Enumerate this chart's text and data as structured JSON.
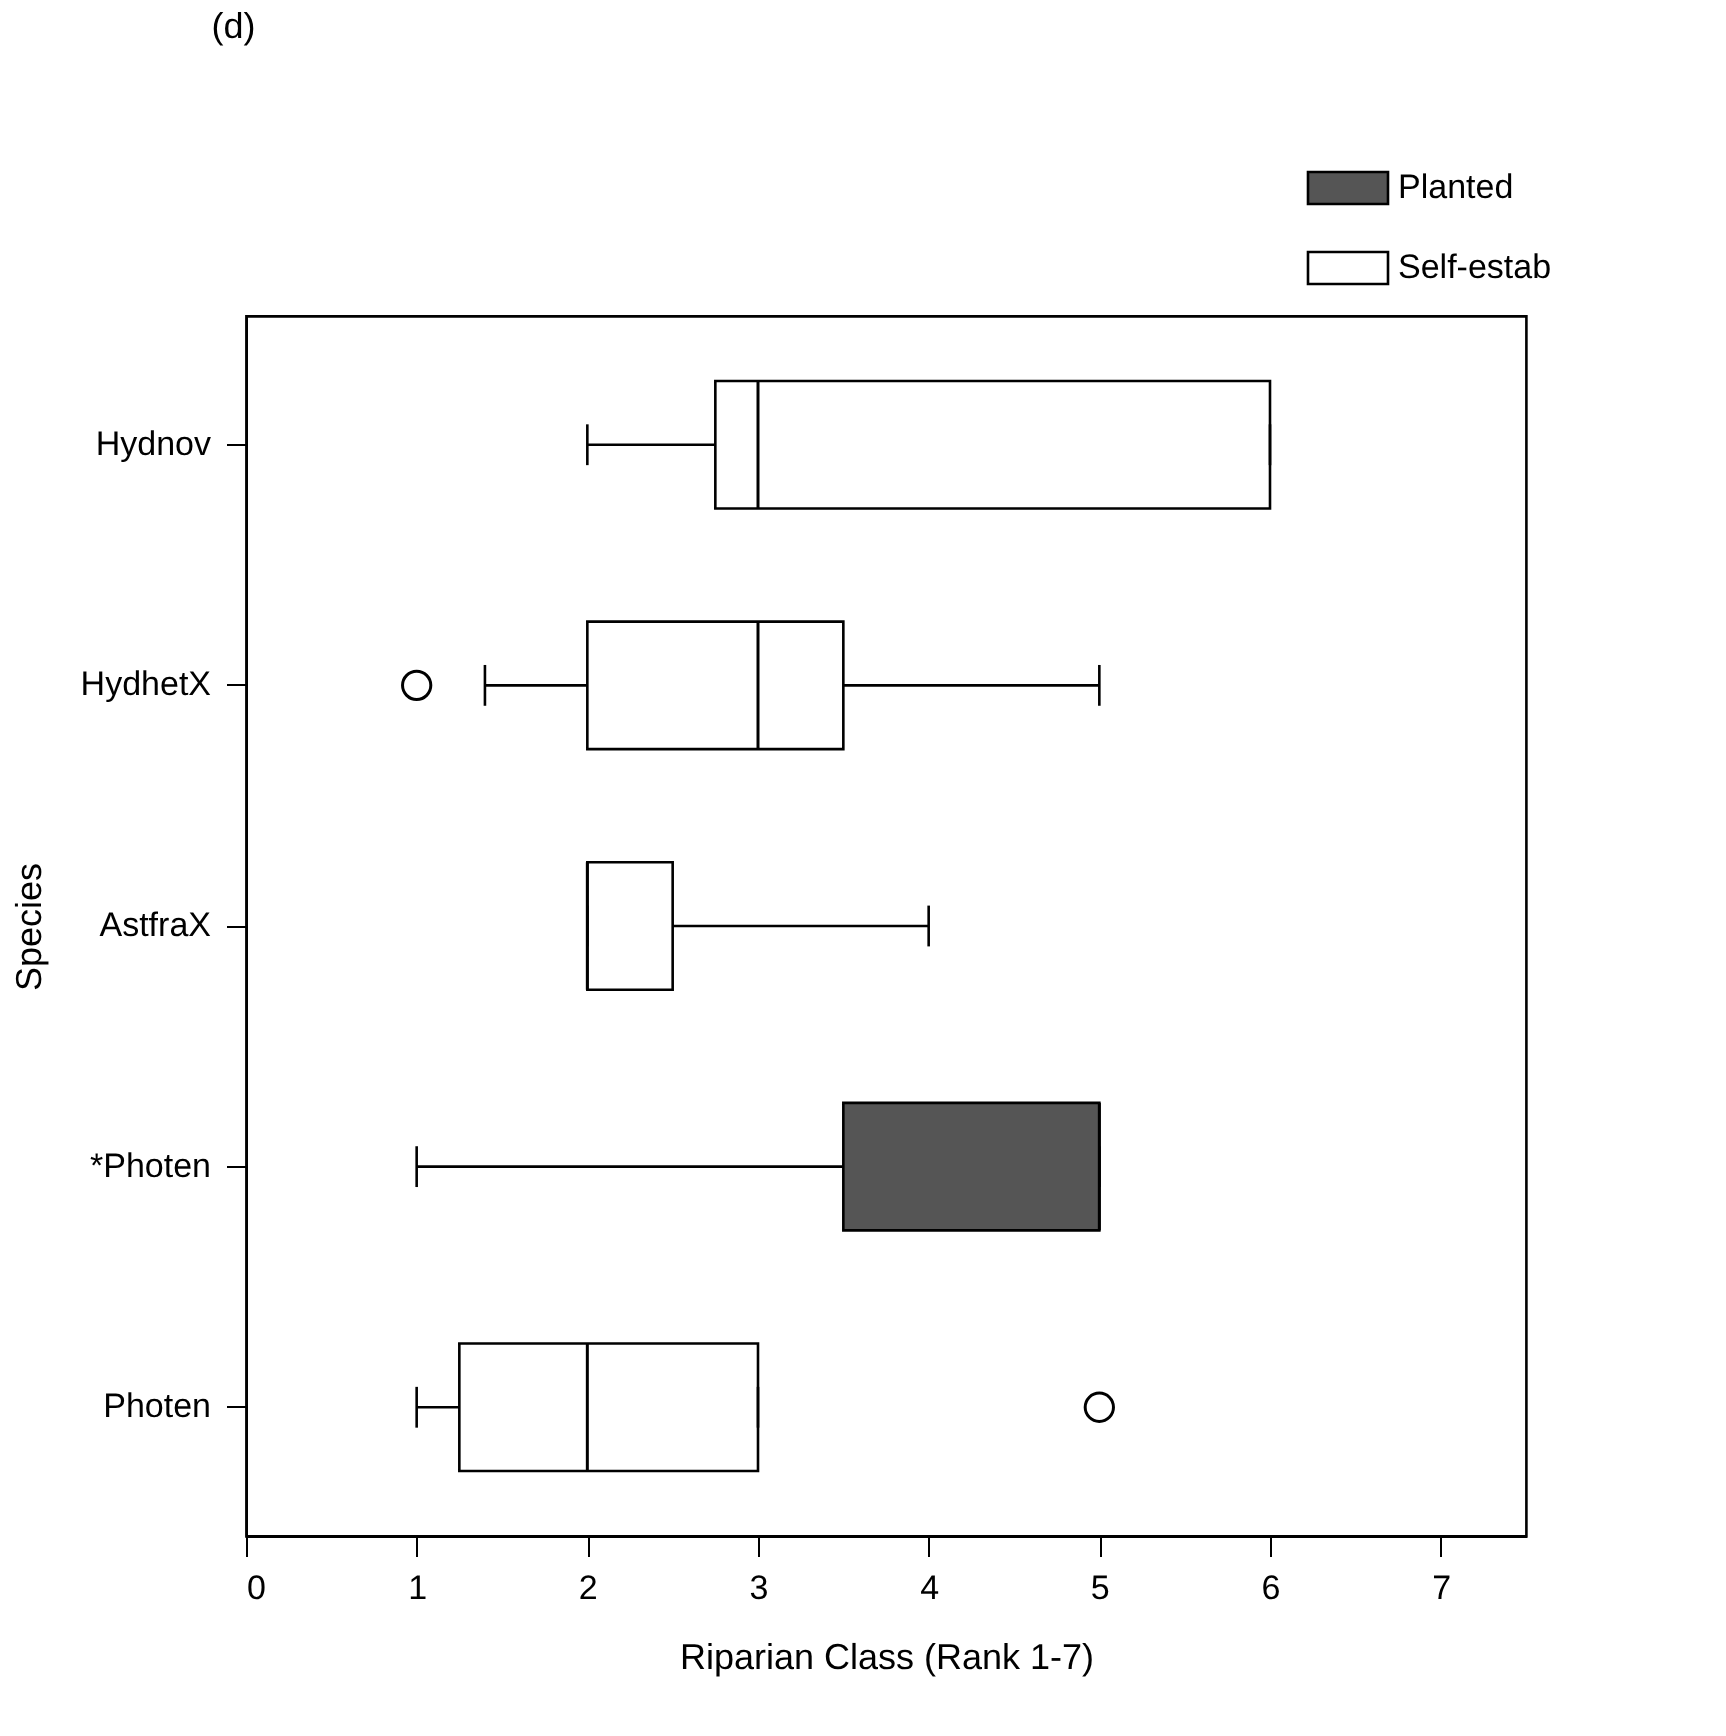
{
  "chart_data": {
    "type": "box",
    "title": "(d)",
    "xlabel": "Riparian Class (Rank 1-7)",
    "ylabel": "Species",
    "orientation": "horizontal",
    "legend": "top right",
    "categories": [
      "Hydnov",
      "HydhetX",
      "AstfraX",
      "*Photen",
      "Photen"
    ],
    "xlim": [
      0,
      7.5
    ],
    "xticks": [
      0,
      1,
      2,
      3,
      4,
      5,
      6,
      7
    ],
    "series": [
      {
        "name": "Planted",
        "color": "#555555",
        "boxes": [
          null,
          null,
          null,
          {
            "low": 1,
            "q1": 3.5,
            "median": 5,
            "q3": 5,
            "high": 5
          },
          null
        ]
      },
      {
        "name": "Self-estab",
        "color": "#ffffff",
        "boxes": [
          {
            "low": 2,
            "q1": 2.75,
            "median": 3,
            "q3": 6,
            "high": 6
          },
          {
            "low": 1.4,
            "q1": 2,
            "median": 3,
            "q3": 3.5,
            "high": 5,
            "outliers": [
              1
            ]
          },
          {
            "low": 2,
            "q1": 2,
            "median": 2,
            "q3": 2.5,
            "high": 4
          },
          null,
          {
            "low": 1,
            "q1": 1.25,
            "median": 2,
            "q3": 3,
            "high": 3,
            "outliers": [
              5
            ]
          }
        ]
      }
    ]
  }
}
